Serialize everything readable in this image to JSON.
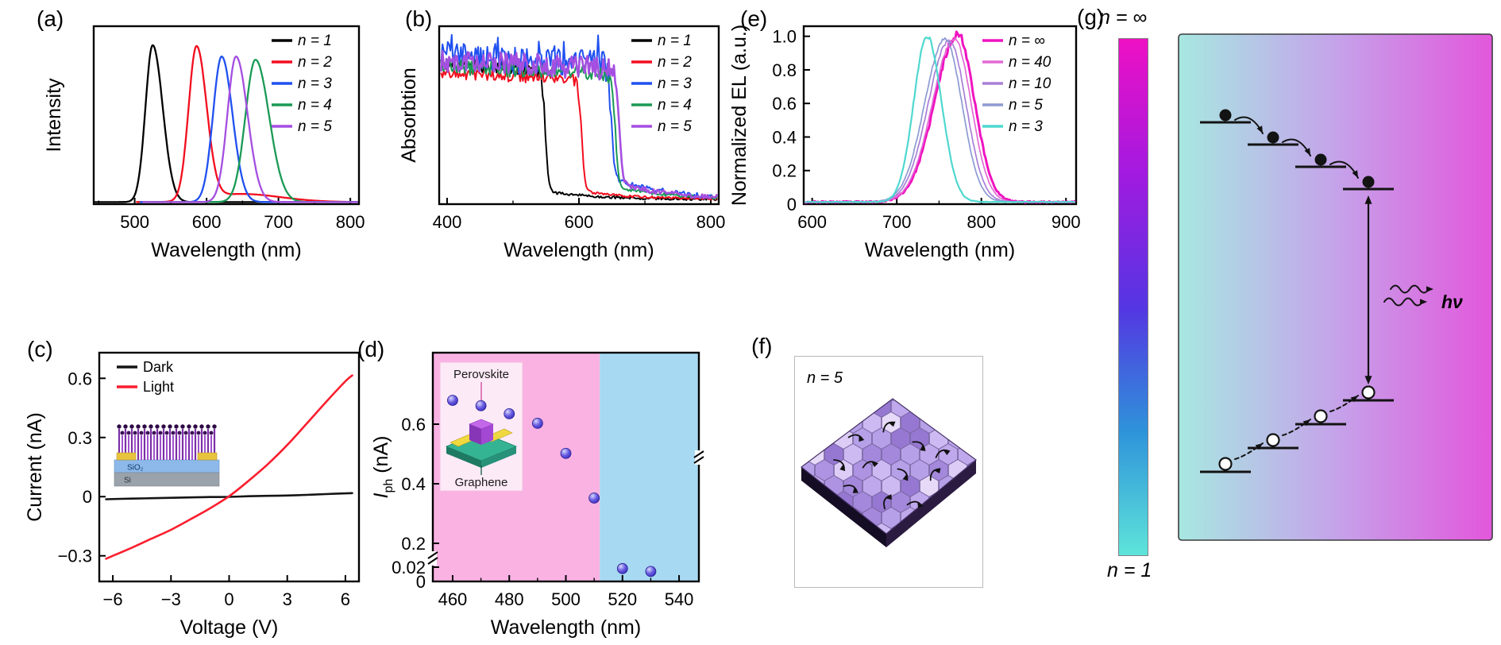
{
  "panel_labels": {
    "a": "(a)",
    "b": "(b)",
    "c": "(c)",
    "d": "(d)",
    "e": "(e)",
    "f": "(f)",
    "g": "(g)"
  },
  "chart_data": [
    {
      "id": "a",
      "type": "line",
      "title": "PL spectra",
      "xlabel": "Wavelength (nm)",
      "ylabel": "Intensity",
      "xlim": [
        443,
        812
      ],
      "ylim": [
        0,
        1.1
      ],
      "xticks": [
        [
          500,
          "500"
        ],
        [
          600,
          "600"
        ],
        [
          700,
          "700"
        ],
        [
          800,
          "800"
        ]
      ],
      "xminor": [
        450,
        550,
        650,
        750
      ],
      "series": [
        {
          "name": "n = 1",
          "color": "#000000",
          "xstart": 445,
          "components": [
            {
              "center": 525,
              "height": 0.97,
              "wl": 10,
              "wr": 14
            }
          ]
        },
        {
          "name": "n = 2",
          "color": "#f20d1e",
          "xstart": 503,
          "components": [
            {
              "center": 586,
              "height": 0.95,
              "wl": 11,
              "wr": 14
            },
            {
              "center": 648,
              "height": 0.05,
              "wl": 40,
              "wr": 55
            }
          ]
        },
        {
          "name": "n = 3",
          "color": "#2050f0",
          "xstart": 508,
          "components": [
            {
              "center": 621,
              "height": 0.9,
              "wl": 12,
              "wr": 15
            }
          ]
        },
        {
          "name": "n = 4",
          "color": "#1a9a55",
          "xstart": 516,
          "components": [
            {
              "center": 668,
              "height": 0.88,
              "wl": 14,
              "wr": 19
            }
          ]
        },
        {
          "name": "n = 5",
          "color": "#a44fe0",
          "xstart": 512,
          "components": [
            {
              "center": 641,
              "height": 0.9,
              "wl": 12,
              "wr": 16
            }
          ]
        }
      ]
    },
    {
      "id": "b",
      "type": "line",
      "title": "Absorption spectra",
      "xlabel": "Wavelength (nm)",
      "ylabel": "Absorbtion",
      "xlim": [
        388,
        812
      ],
      "ylim": [
        0,
        1.12
      ],
      "xticks": [
        [
          400,
          "400"
        ],
        [
          600,
          "600"
        ],
        [
          800,
          "800"
        ]
      ],
      "xminor": [
        500,
        700
      ],
      "series": [
        {
          "name": "n = 1",
          "color": "#000000",
          "edge": 549,
          "plateau": 0.84,
          "noise": 0.035,
          "tail": 0.05
        },
        {
          "name": "n = 2",
          "color": "#f20d1e",
          "edge": 604,
          "plateau": 0.78,
          "noise": 0.03,
          "tail": 0.05
        },
        {
          "name": "n = 3",
          "color": "#2050f0",
          "edge": 649,
          "plateau": 0.88,
          "noise": 0.07,
          "tail": 0.14,
          "spiky": true
        },
        {
          "name": "n = 4",
          "color": "#1a9a55",
          "edge": 655,
          "plateau": 0.82,
          "noise": 0.04,
          "tail": 0.08
        },
        {
          "name": "n = 5",
          "color": "#a44fe0",
          "edge": 661,
          "plateau": 0.85,
          "noise": 0.06,
          "tail": 0.1,
          "lw": 2.6
        }
      ]
    },
    {
      "id": "e",
      "type": "line",
      "title": "EL spectra",
      "xlabel": "Wavelength (nm)",
      "ylabel": "Normalized EL (a.u.)",
      "xlim": [
        590,
        912
      ],
      "ylim": [
        0,
        1.06
      ],
      "xticks": [
        [
          600,
          "600"
        ],
        [
          700,
          "700"
        ],
        [
          800,
          "800"
        ],
        [
          900,
          "900"
        ]
      ],
      "xminor": [
        650,
        750,
        850
      ],
      "yticks": [
        [
          0,
          "0"
        ],
        [
          0.2,
          "0.2"
        ],
        [
          0.4,
          "0.4"
        ],
        [
          0.6,
          "0.6"
        ],
        [
          0.8,
          "0.8"
        ],
        [
          1.0,
          "1.0"
        ]
      ],
      "series": [
        {
          "name": "n = ∞",
          "color": "#f013c0",
          "lw": 3,
          "noise": 0.02,
          "components": [
            {
              "center": 772,
              "height": 1.0,
              "wl": 27,
              "wr": 20
            }
          ]
        },
        {
          "name": "n = 40",
          "color": "#e26ad4",
          "lw": 1.7,
          "noise": 0.008,
          "components": [
            {
              "center": 768,
              "height": 0.97,
              "wl": 26,
              "wr": 20
            }
          ]
        },
        {
          "name": "n = 10",
          "color": "#a87fd6",
          "lw": 1.7,
          "noise": 0.008,
          "components": [
            {
              "center": 762,
              "height": 0.96,
              "wl": 25,
              "wr": 20
            }
          ]
        },
        {
          "name": "n = 5",
          "color": "#8d9ad2",
          "lw": 1.7,
          "noise": 0.008,
          "components": [
            {
              "center": 757,
              "height": 0.97,
              "wl": 24,
              "wr": 20
            }
          ]
        },
        {
          "name": "n = 3",
          "color": "#4fd8cf",
          "lw": 2.2,
          "noise": 0.01,
          "components": [
            {
              "center": 736,
              "height": 0.985,
              "wl": 16,
              "wr": 17
            }
          ]
        }
      ]
    },
    {
      "id": "c",
      "type": "line",
      "title": "I-V curve",
      "xlabel": "Voltage (V)",
      "ylabel": "Current (nA)",
      "xlim": [
        -6.7,
        6.7
      ],
      "ylim": [
        -0.43,
        0.73
      ],
      "xticks": [
        [
          -6,
          "−6"
        ],
        [
          -3,
          "−3"
        ],
        [
          0,
          "0"
        ],
        [
          3,
          "3"
        ],
        [
          6,
          "6"
        ]
      ],
      "yticks": [
        [
          -0.3,
          "−0.3"
        ],
        [
          0,
          "0"
        ],
        [
          0.3,
          "0.3"
        ],
        [
          0.6,
          "0.6"
        ]
      ],
      "series": [
        {
          "name": "Dark",
          "color": "#141414",
          "points": [
            [
              -6.35,
              -0.013
            ],
            [
              -5,
              -0.01
            ],
            [
              -4,
              -0.008
            ],
            [
              -3,
              -0.006
            ],
            [
              -2,
              -0.004
            ],
            [
              -1,
              -0.002
            ],
            [
              0,
              -0.001
            ],
            [
              1,
              0.002
            ],
            [
              2,
              0.004
            ],
            [
              3,
              0.006
            ],
            [
              4,
              0.009
            ],
            [
              5,
              0.013
            ],
            [
              6.35,
              0.018
            ]
          ]
        },
        {
          "name": "Light",
          "color": "#fb1e2e",
          "points": [
            [
              -6.35,
              -0.315
            ],
            [
              -6,
              -0.3
            ],
            [
              -5,
              -0.258
            ],
            [
              -4,
              -0.213
            ],
            [
              -3,
              -0.168
            ],
            [
              -2,
              -0.115
            ],
            [
              -1,
              -0.06
            ],
            [
              0,
              0.002
            ],
            [
              1,
              0.08
            ],
            [
              2,
              0.165
            ],
            [
              3,
              0.262
            ],
            [
              4,
              0.37
            ],
            [
              5,
              0.48
            ],
            [
              6,
              0.585
            ],
            [
              6.35,
              0.615
            ]
          ]
        }
      ],
      "inset_labels": {
        "sio2": "SiO₂",
        "si": "Si"
      }
    },
    {
      "id": "d",
      "type": "scatter",
      "title": "Photocurrent vs wavelength",
      "xlabel": "Wavelength (nm)",
      "ylabel_main": "I",
      "ylabel_sub": "ph",
      "ylabel_unit": " (nA)",
      "xlim": [
        453,
        547
      ],
      "xticks": [
        [
          460,
          "460"
        ],
        [
          480,
          "480"
        ],
        [
          500,
          "500"
        ],
        [
          520,
          "520"
        ],
        [
          540,
          "540"
        ]
      ],
      "xminor": [
        470,
        490,
        510,
        530
      ],
      "yticks": [
        [
          0.6,
          "0.6"
        ],
        [
          0.4,
          "0.4"
        ],
        [
          0.2,
          "0.2"
        ],
        [
          0.02,
          "0.02"
        ],
        [
          0,
          "0"
        ]
      ],
      "axis_break": true,
      "points": [
        [
          460,
          0.68
        ],
        [
          470,
          0.662
        ],
        [
          480,
          0.635
        ],
        [
          490,
          0.603
        ],
        [
          500,
          0.502
        ],
        [
          510,
          0.352
        ],
        [
          520,
          0.018
        ],
        [
          530,
          0.014
        ]
      ],
      "marker": {
        "fill_light": "#d6d9ff",
        "fill_dark": "#3a2fc0",
        "r": 6.5
      },
      "bg": {
        "pink": "#fab2e3",
        "blue": "#a7daf2",
        "boundary": 512
      },
      "inset": {
        "top_label": "Perovskite",
        "bottom_label": "Graphene"
      }
    }
  ],
  "panel_f": {
    "label": "n = 5",
    "grain_palette": [
      "#b6a0e8",
      "#cdbaf2",
      "#a488dc",
      "#dcccf6",
      "#9678d2",
      "#c0a8ec",
      "#e6daf8",
      "#ad93e2"
    ]
  },
  "panel_g": {
    "colorbar": {
      "top_label": "n = ∞",
      "bottom_label": "n = 1",
      "stops": [
        "#ee10c4",
        "#a21ae0",
        "#5436e2",
        "#2e93da",
        "#5ee4da"
      ]
    },
    "diagram": {
      "photon_label": "hν",
      "bg_left": "#a7e8e1",
      "bg_mid": "#c5a3ea",
      "bg_right": "#e357dc"
    }
  }
}
